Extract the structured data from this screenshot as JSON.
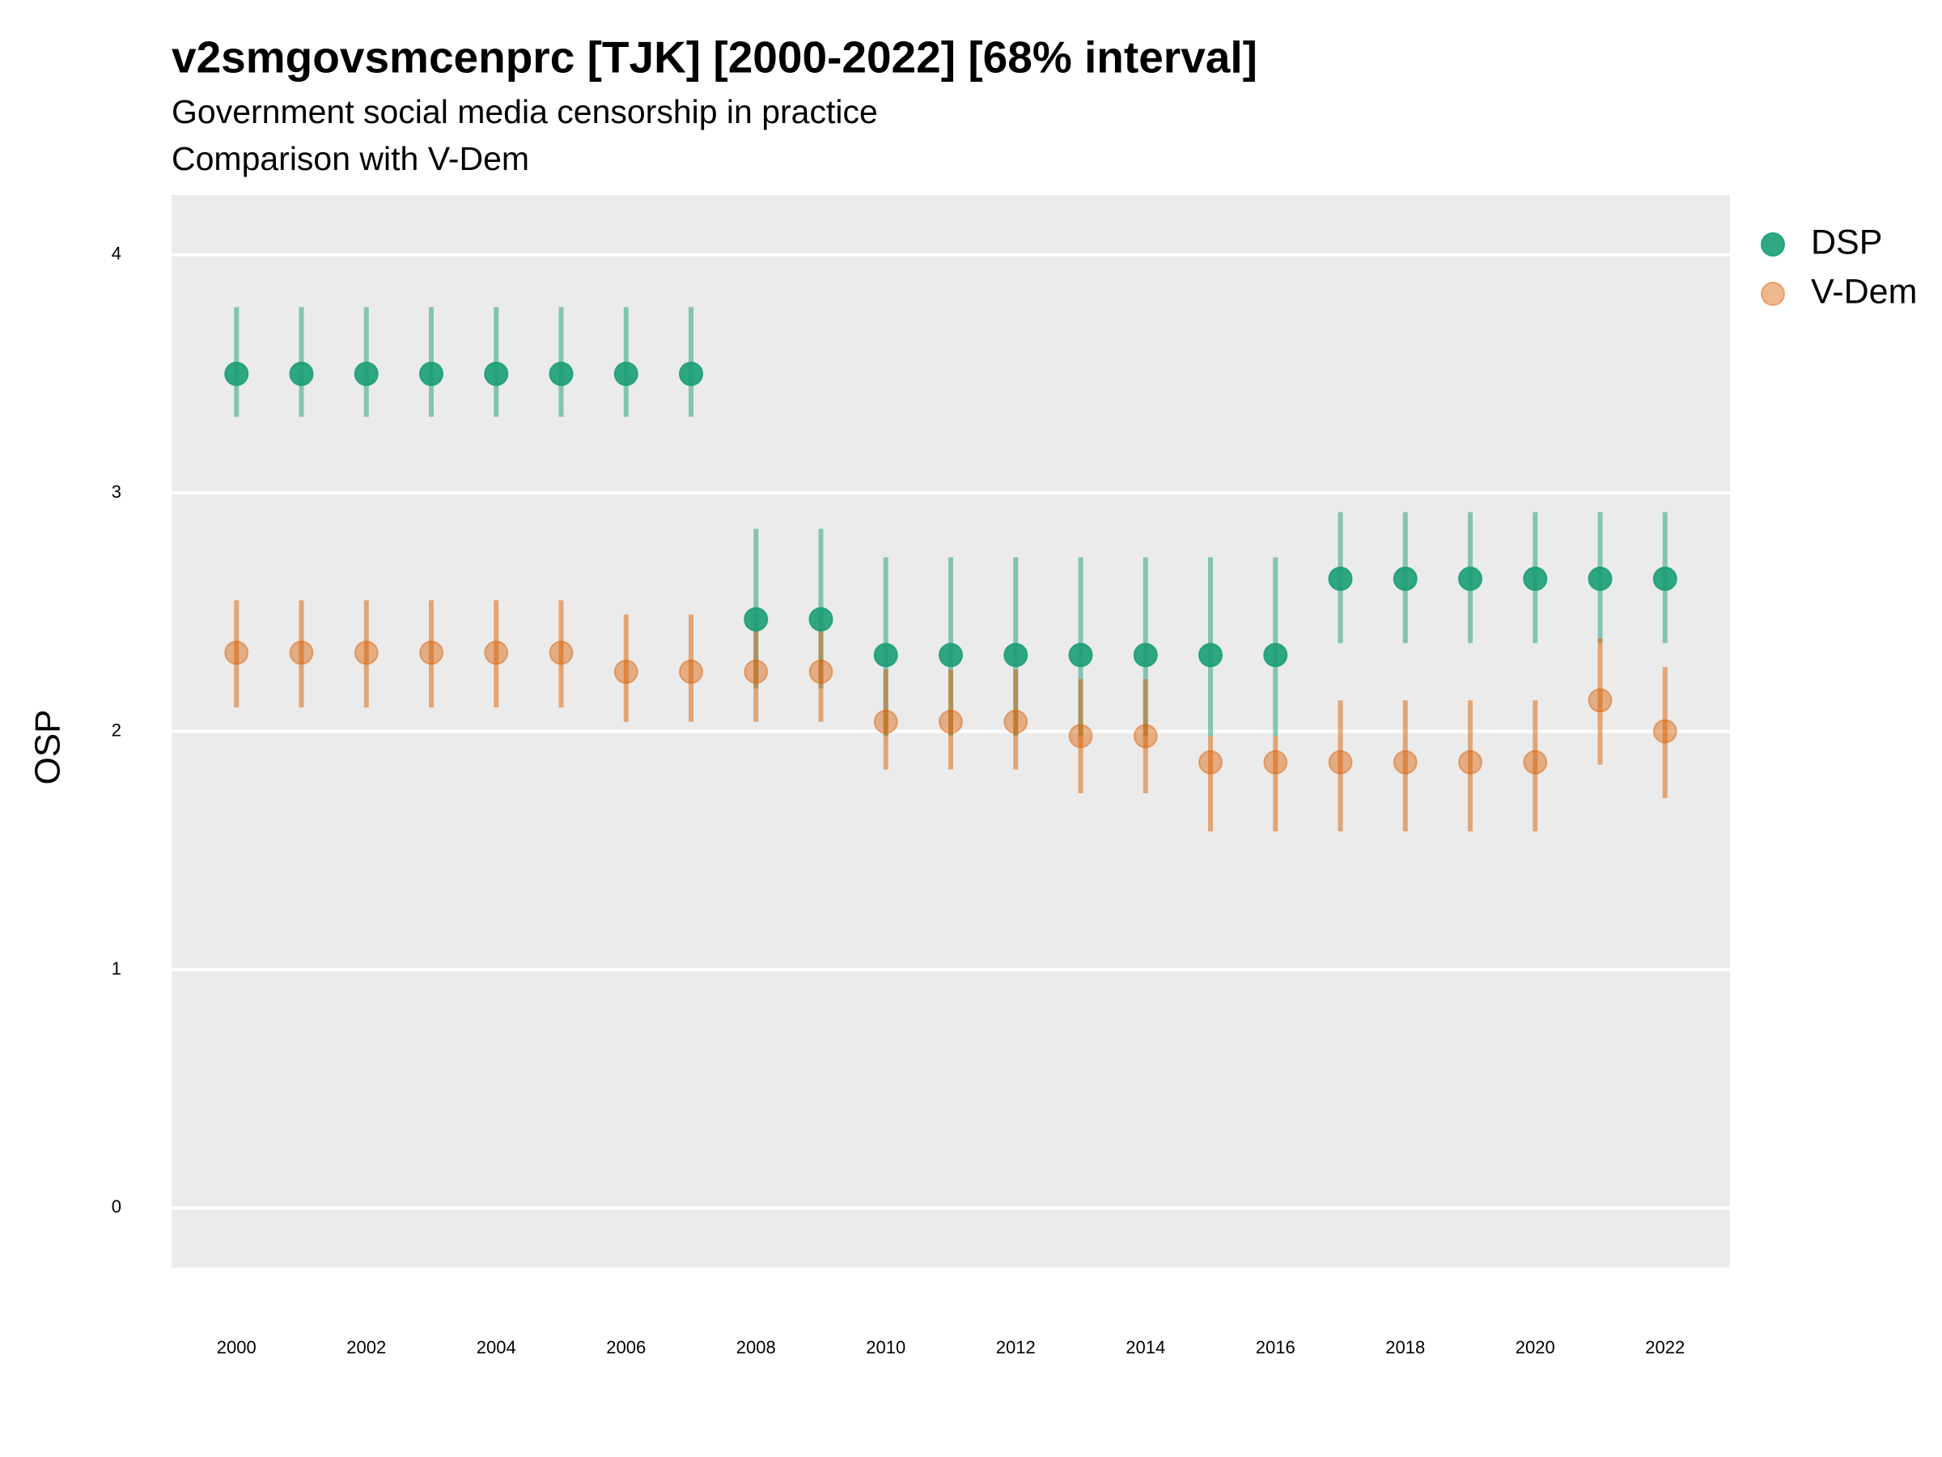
{
  "chart_data": {
    "type": "scatter",
    "title": "v2smgovsmcenprc [TJK] [2000-2022] [68% interval]",
    "subtitle": "Government social media censorship in practice",
    "subtitle2": "Comparison with V-Dem",
    "y_label": "OSP",
    "x": [
      2000,
      2001,
      2002,
      2003,
      2004,
      2005,
      2006,
      2007,
      2008,
      2009,
      2010,
      2011,
      2012,
      2013,
      2014,
      2015,
      2016,
      2017,
      2018,
      2019,
      2020,
      2021,
      2022
    ],
    "xlim": [
      1999,
      2023
    ],
    "xticks": [
      2000,
      2002,
      2004,
      2006,
      2008,
      2010,
      2012,
      2014,
      2016,
      2018,
      2020,
      2022
    ],
    "ylim": [
      -0.25,
      4.25
    ],
    "yticks": [
      0,
      1,
      2,
      3,
      4
    ],
    "grid": true,
    "legend": "right",
    "series": [
      {
        "name": "DSP",
        "color": "#1b9e77",
        "values": [
          3.5,
          3.5,
          3.5,
          3.5,
          3.5,
          3.5,
          3.5,
          3.5,
          2.47,
          2.47,
          2.32,
          2.32,
          2.32,
          2.32,
          2.32,
          2.32,
          2.32,
          2.64,
          2.64,
          2.64,
          2.64,
          2.64,
          2.64
        ],
        "lower": [
          3.32,
          3.32,
          3.32,
          3.32,
          3.32,
          3.32,
          3.32,
          3.32,
          2.18,
          2.18,
          1.98,
          1.98,
          1.98,
          1.98,
          1.98,
          1.98,
          1.98,
          2.37,
          2.37,
          2.37,
          2.37,
          2.37,
          2.37
        ],
        "upper": [
          3.78,
          3.78,
          3.78,
          3.78,
          3.78,
          3.78,
          3.78,
          3.78,
          2.85,
          2.85,
          2.73,
          2.73,
          2.73,
          2.73,
          2.73,
          2.73,
          2.73,
          2.92,
          2.92,
          2.92,
          2.92,
          2.92,
          2.92
        ]
      },
      {
        "name": "V-Dem",
        "color": "#d95f02",
        "values": [
          2.33,
          2.33,
          2.33,
          2.33,
          2.33,
          2.33,
          2.25,
          2.25,
          2.25,
          2.25,
          2.04,
          2.04,
          2.04,
          1.98,
          1.98,
          1.87,
          1.87,
          1.87,
          1.87,
          1.87,
          1.87,
          2.13,
          2.0
        ],
        "lower": [
          2.1,
          2.1,
          2.1,
          2.1,
          2.1,
          2.1,
          2.04,
          2.04,
          2.04,
          2.04,
          1.84,
          1.84,
          1.84,
          1.74,
          1.74,
          1.58,
          1.58,
          1.58,
          1.58,
          1.58,
          1.58,
          1.86,
          1.72
        ],
        "upper": [
          2.55,
          2.55,
          2.55,
          2.55,
          2.55,
          2.55,
          2.49,
          2.49,
          2.49,
          2.49,
          2.26,
          2.26,
          2.26,
          2.22,
          2.22,
          1.98,
          1.98,
          2.13,
          2.13,
          2.13,
          2.13,
          2.39,
          2.27
        ]
      }
    ]
  }
}
